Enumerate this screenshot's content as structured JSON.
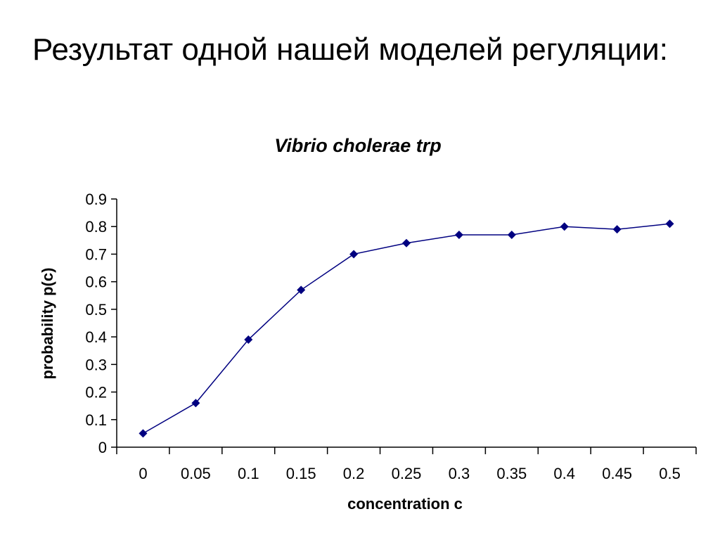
{
  "slide": {
    "title": "Результат одной нашей моделей регуляции:"
  },
  "chart_data": {
    "type": "line",
    "title": "Vibrio cholerae trp",
    "xlabel": "concentration c",
    "ylabel": "probability p(c)",
    "categories": [
      "0",
      "0.05",
      "0.1",
      "0.15",
      "0.2",
      "0.25",
      "0.3",
      "0.35",
      "0.4",
      "0.45",
      "0.5"
    ],
    "series": [
      {
        "values": [
          0.05,
          0.16,
          0.39,
          0.57,
          0.7,
          0.74,
          0.77,
          0.77,
          0.8,
          0.79,
          0.81
        ],
        "color": "#000080",
        "marker": "diamond"
      }
    ],
    "ylim": [
      0,
      0.9
    ],
    "yticks": [
      "0",
      "0.1",
      "0.2",
      "0.3",
      "0.4",
      "0.5",
      "0.6",
      "0.7",
      "0.8",
      "0.9"
    ],
    "grid": false,
    "legend": "none"
  }
}
